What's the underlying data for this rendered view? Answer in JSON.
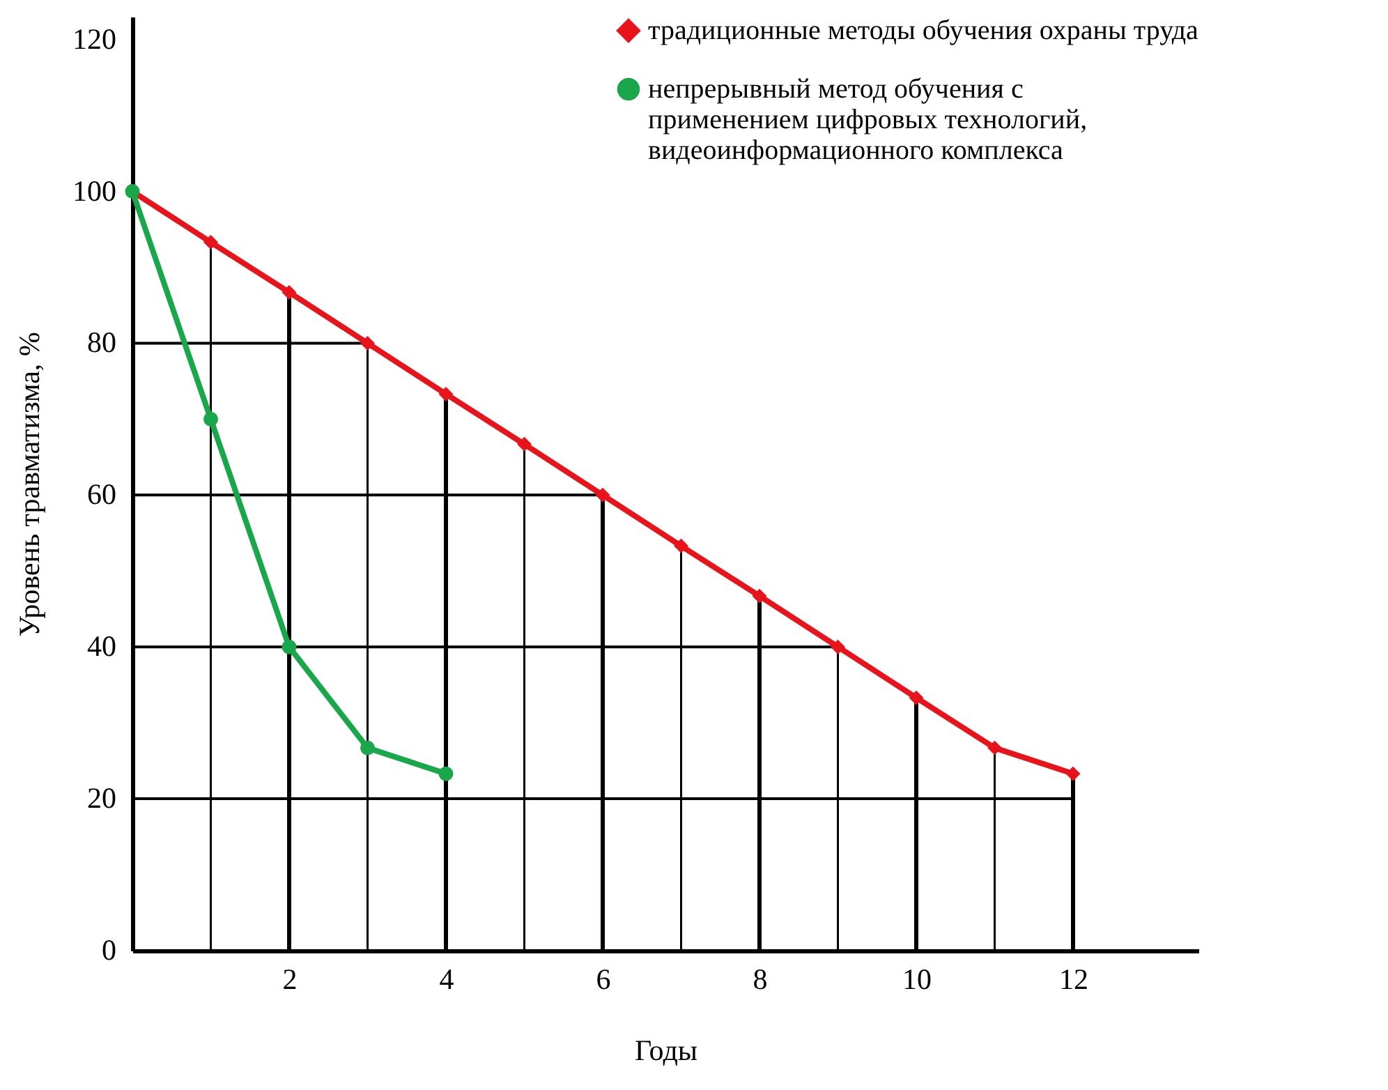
{
  "chart_data": {
    "type": "line",
    "xlabel": "Годы",
    "ylabel": "Уровень травматизма, %",
    "xlim": [
      0,
      13.6
    ],
    "ylim": [
      0,
      123
    ],
    "xticks": [
      2,
      4,
      6,
      8,
      10,
      12
    ],
    "yticks": [
      0,
      20,
      40,
      60,
      80,
      100,
      120
    ],
    "legend": "top right",
    "ref_lines": [
      {
        "axis": "x",
        "value": 1,
        "color": "#000000"
      },
      {
        "axis": "x",
        "value": 2,
        "color": "#000000"
      },
      {
        "axis": "x",
        "value": 3,
        "color": "#000000"
      },
      {
        "axis": "x",
        "value": 4,
        "color": "#000000"
      },
      {
        "axis": "x",
        "value": 5,
        "color": "#000000"
      },
      {
        "axis": "x",
        "value": 6,
        "color": "#000000"
      },
      {
        "axis": "x",
        "value": 7,
        "color": "#000000"
      },
      {
        "axis": "x",
        "value": 8,
        "color": "#000000"
      },
      {
        "axis": "x",
        "value": 9,
        "color": "#000000"
      },
      {
        "axis": "x",
        "value": 10,
        "color": "#000000"
      },
      {
        "axis": "x",
        "value": 11,
        "color": "#000000"
      },
      {
        "axis": "x",
        "value": 12,
        "color": "#000000"
      },
      {
        "axis": "y",
        "value": 20,
        "color": "#000000"
      },
      {
        "axis": "y",
        "value": 40,
        "color": "#000000"
      },
      {
        "axis": "y",
        "value": 60,
        "color": "#000000"
      },
      {
        "axis": "y",
        "value": 80,
        "color": "#000000"
      }
    ],
    "series": [
      {
        "name": "традиционные методы обучения охраны труда",
        "color": "#e8141b",
        "marker": "diamond",
        "x": [
          0,
          1,
          2,
          3,
          4,
          5,
          6,
          7,
          8,
          9,
          10,
          11,
          12
        ],
        "values": [
          100,
          93.3,
          86.7,
          80,
          73.3,
          66.7,
          60,
          53.3,
          46.7,
          40,
          33.3,
          26.7,
          23.3
        ]
      },
      {
        "name": "непрерывный метод обучения с применением цифровых технологий, видеоинформационного комплекса",
        "color": "#1aa64a",
        "marker": "circle",
        "x": [
          0,
          1,
          2,
          3,
          4
        ],
        "values": [
          100,
          70,
          40,
          26.7,
          23.3
        ]
      }
    ]
  }
}
